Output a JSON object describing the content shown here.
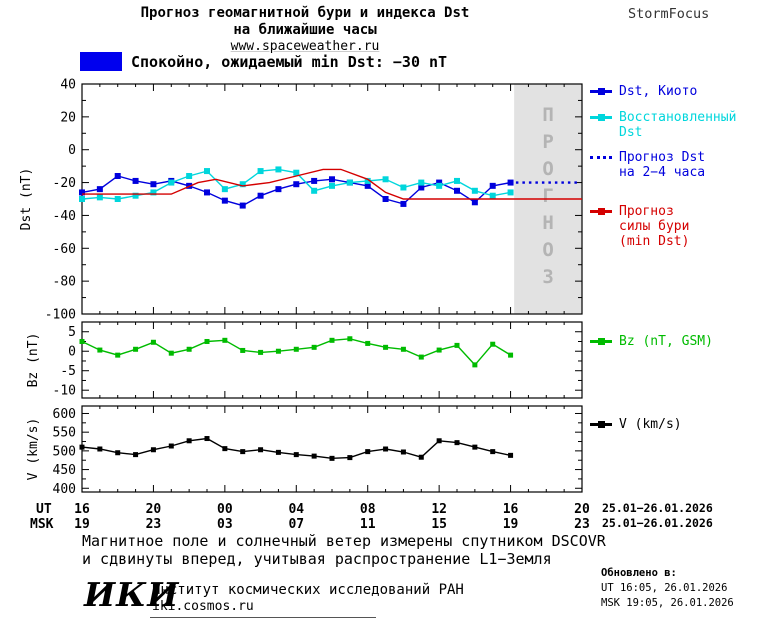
{
  "header": {
    "title_line1": "Прогноз геомагнитной бури и индекса Dst",
    "title_line2": "на ближайшие часы",
    "url": "www.spaceweather.ru",
    "brand": "StormFocus"
  },
  "status": {
    "label": "Спокойно, ожидаемый min Dst: −30 nT",
    "color": "#0000ee"
  },
  "legend_main": {
    "dst_kyoto": {
      "label": "Dst, Киото",
      "color": "#0000dd"
    },
    "restored": {
      "label": "Восстановленный\nDst",
      "color": "#00d6dc"
    },
    "forecast_dst": {
      "label": "Прогноз Dst\nна 2−4 часа",
      "color": "#0000dd"
    },
    "storm_forecast": {
      "label": "Прогноз\nсилы бури\n(min Dst)",
      "color": "#d40000"
    },
    "bz": {
      "label": "Bz (nT, GSM)",
      "color": "#00bb00"
    },
    "v": {
      "label": "V (km/s)",
      "color": "#000000"
    }
  },
  "axes": {
    "ut_label": "UT",
    "msk_label": "MSK",
    "tick_positions": [
      0,
      4,
      8,
      12,
      16,
      20,
      24,
      28
    ],
    "ut_ticks": [
      "16",
      "20",
      "00",
      "04",
      "08",
      "12",
      "16",
      "20"
    ],
    "msk_ticks": [
      "19",
      "23",
      "03",
      "07",
      "11",
      "15",
      "19",
      "23"
    ],
    "ut_date": "25.01−26.01.2026",
    "msk_date": "25.01−26.01.2026"
  },
  "footer": {
    "note_line1": "Магнитное поле и солнечный ветер измерены спутником DSCOVR",
    "note_line2": "и сдвинуты вперед, учитывая распространение L1−Земля",
    "updated_title": "Обновлено в:",
    "updated_ut": "UT  16:05, 26.01.2026",
    "updated_msk": "MSK 19:05, 26.01.2026",
    "logo": "ИКИ",
    "institute": "Институт космических исследований РАН",
    "site": "iki.cosmos.ru"
  },
  "chart_data": [
    {
      "type": "line",
      "title": "Прогноз геомагнитной бури и индекса Dst на ближайшие часы",
      "ylabel": "Dst (nT)",
      "xlabel": "UT / MSK",
      "ylim": [
        -100,
        40
      ],
      "yticks": [
        40,
        20,
        0,
        -20,
        -40,
        -60,
        -80,
        -100
      ],
      "xlim": [
        0,
        28
      ],
      "x_unit": "hours from 16:00 UT 25.01.2026",
      "grid": false,
      "legend_position": "right",
      "forecast_band": {
        "x": [
          24.2,
          28
        ],
        "label": "ПРОГНОЗ"
      },
      "series": [
        {
          "name": "Dst, Киото",
          "color": "#0000dd",
          "marker": "square",
          "x": [
            0,
            1,
            2,
            3,
            4,
            5,
            6,
            7,
            8,
            9,
            10,
            11,
            12,
            13,
            14,
            15,
            16,
            17,
            18,
            19,
            20,
            21,
            22,
            23,
            24
          ],
          "y": [
            -26,
            -24,
            -16,
            -19,
            -21,
            -19,
            -22,
            -26,
            -31,
            -34,
            -28,
            -24,
            -21,
            -19,
            -18,
            -20,
            -22,
            -30,
            -33,
            -23,
            -20,
            -25,
            -32,
            -22,
            -20
          ]
        },
        {
          "name": "Восстановленный Dst",
          "color": "#00d6dc",
          "marker": "square",
          "x": [
            0,
            1,
            2,
            3,
            4,
            5,
            6,
            7,
            8,
            9,
            10,
            11,
            12,
            13,
            14,
            15,
            16,
            17,
            18,
            19,
            20,
            21,
            22,
            23,
            24
          ],
          "y": [
            -30,
            -29,
            -30,
            -28,
            -26,
            -20,
            -16,
            -13,
            -24,
            -21,
            -13,
            -12,
            -14,
            -25,
            -22,
            -20,
            -19,
            -18,
            -23,
            -20,
            -22,
            -19,
            -25,
            -28,
            -26
          ]
        },
        {
          "name": "Прогноз Dst на 2−4 часа",
          "color": "#0000dd",
          "dash": true,
          "x": [
            24.3,
            27.8
          ],
          "y": [
            -20,
            -20
          ]
        },
        {
          "name": "Прогноз силы бури (min Dst)",
          "color": "#d40000",
          "x": [
            0,
            5,
            6.5,
            7.5,
            9,
            10.5,
            12,
            13.5,
            14.5,
            16,
            17,
            18,
            28
          ],
          "y": [
            -27,
            -27,
            -20,
            -18,
            -22,
            -20,
            -16,
            -12,
            -12,
            -18,
            -26,
            -30,
            -30
          ]
        }
      ]
    },
    {
      "type": "line",
      "ylabel": "Bz (nT)",
      "ylim": [
        -12,
        7.5
      ],
      "yticks": [
        5,
        0,
        -5,
        -10
      ],
      "xlim": [
        0,
        28
      ],
      "grid": false,
      "series": [
        {
          "name": "Bz (nT, GSM)",
          "color": "#00bb00",
          "marker": "square",
          "x": [
            0,
            1,
            2,
            3,
            4,
            5,
            6,
            7,
            8,
            9,
            10,
            11,
            12,
            13,
            14,
            15,
            16,
            17,
            18,
            19,
            20,
            21,
            22,
            23,
            24
          ],
          "y": [
            2.5,
            0.3,
            -1,
            0.5,
            2.3,
            -0.5,
            0.5,
            2.5,
            2.8,
            0.2,
            -0.3,
            0,
            0.5,
            1,
            2.8,
            3.2,
            2,
            1,
            0.5,
            -1.5,
            0.3,
            1.5,
            -3.5,
            1.8,
            -1
          ]
        }
      ]
    },
    {
      "type": "line",
      "ylabel": "V (km/s)",
      "ylim": [
        390,
        620
      ],
      "yticks": [
        600,
        550,
        500,
        450,
        400
      ],
      "xlim": [
        0,
        28
      ],
      "grid": false,
      "series": [
        {
          "name": "V (km/s)",
          "color": "#000000",
          "marker": "square",
          "x": [
            0,
            1,
            2,
            3,
            4,
            5,
            6,
            7,
            8,
            9,
            10,
            11,
            12,
            13,
            14,
            15,
            16,
            17,
            18,
            19,
            20,
            21,
            22,
            23,
            24
          ],
          "y": [
            510,
            505,
            495,
            490,
            503,
            513,
            527,
            533,
            506,
            498,
            503,
            496,
            490,
            486,
            480,
            482,
            498,
            505,
            497,
            483,
            527,
            522,
            510,
            498,
            488
          ]
        }
      ]
    }
  ]
}
